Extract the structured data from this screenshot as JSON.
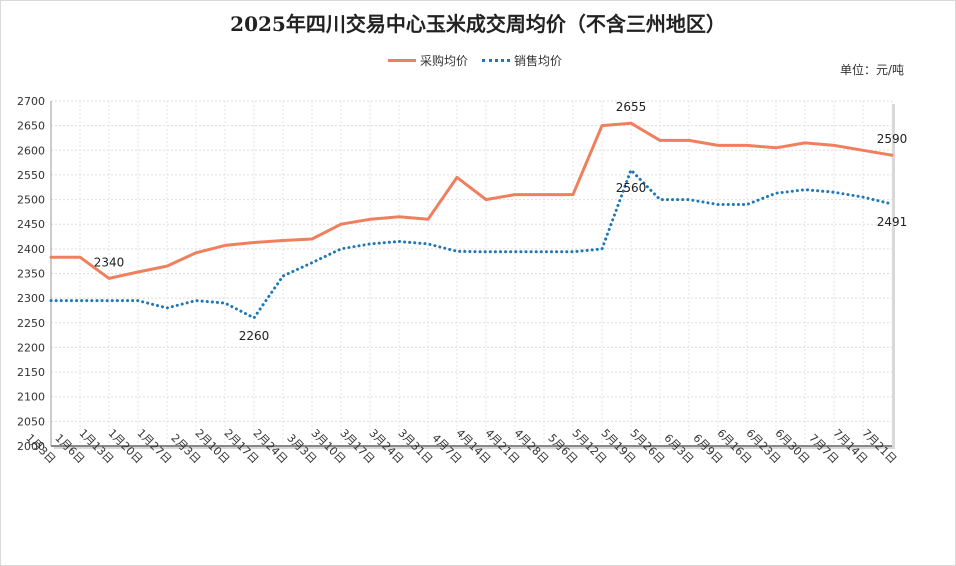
{
  "chart_data": {
    "type": "line",
    "title": "2025年四川交易中心玉米成交周均价（不含三州地区）",
    "unit_label": "单位：元/吨",
    "ylim": [
      2000,
      2700
    ],
    "y_ticks": [
      2000,
      2050,
      2100,
      2150,
      2200,
      2250,
      2300,
      2350,
      2400,
      2450,
      2500,
      2550,
      2600,
      2650,
      2700
    ],
    "grid": true,
    "legend": "top-center",
    "categories": [
      "1月3日",
      "1月6日",
      "1月13日",
      "1月20日",
      "1月27日",
      "2月3日",
      "2月10日",
      "2月17日",
      "2月24日",
      "3月3日",
      "3月10日",
      "3月17日",
      "3月24日",
      "3月31日",
      "4月7日",
      "4月14日",
      "4月21日",
      "4月28日",
      "5月6日",
      "5月12日",
      "5月19日",
      "5月26日",
      "6月3日",
      "6月9日",
      "6月16日",
      "6月23日",
      "6月30日",
      "7月7日",
      "7月14日",
      "7月21日"
    ],
    "series": [
      {
        "name": "采购均价",
        "color": "#f07f5e",
        "style": "solid",
        "values": [
          2383,
          2383,
          2340,
          2353,
          2365,
          2392,
          2407,
          2413,
          2417,
          2420,
          2450,
          2460,
          2465,
          2460,
          2545,
          2500,
          2510,
          2510,
          2510,
          2650,
          2655,
          2620,
          2620,
          2610,
          2610,
          2605,
          2615,
          2610,
          2600,
          2590
        ]
      },
      {
        "name": "销售均价",
        "color": "#1f78b4",
        "style": "dotted",
        "values": [
          2295,
          2295,
          2295,
          2295,
          2280,
          2295,
          2290,
          2260,
          2345,
          2372,
          2400,
          2410,
          2415,
          2410,
          2395,
          2394,
          2394,
          2394,
          2394,
          2400,
          2560,
          2500,
          2500,
          2490,
          2490,
          2513,
          2520,
          2515,
          2505,
          2491
        ]
      }
    ],
    "annotations": [
      {
        "series": 0,
        "index": 2,
        "text": "2340",
        "pos": "above"
      },
      {
        "series": 1,
        "index": 7,
        "text": "2260",
        "pos": "below"
      },
      {
        "series": 0,
        "index": 20,
        "text": "2655",
        "pos": "above"
      },
      {
        "series": 1,
        "index": 20,
        "text": "2560",
        "pos": "below"
      },
      {
        "series": 0,
        "index": 29,
        "text": "2590",
        "pos": "above"
      },
      {
        "series": 1,
        "index": 29,
        "text": "2491",
        "pos": "below"
      }
    ]
  }
}
